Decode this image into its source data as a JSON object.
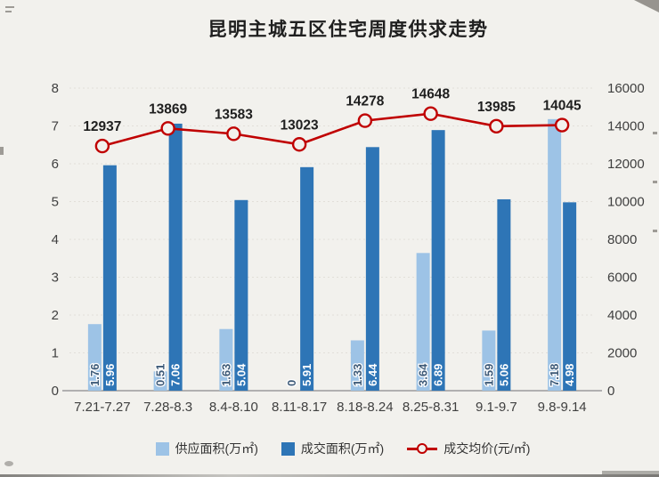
{
  "title": "昆明主城五区住宅周度供求走势",
  "colors": {
    "background": "#f2f1ed",
    "axis_text": "#404040",
    "title_text": "#1f1f1f",
    "grid": "#e2dfd9",
    "axis_line": "#9b9b9b"
  },
  "chart_data": {
    "type": "bar",
    "title": "昆明主城五区住宅周度供求走势",
    "categories": [
      "7.21-7.27",
      "7.28-8.3",
      "8.4-8.10",
      "8.11-8.17",
      "8.18-8.24",
      "8.25-8.31",
      "9.1-9.7",
      "9.8-9.14"
    ],
    "series": [
      {
        "name": "供应面积(万㎡)",
        "type": "bar",
        "axis": "left",
        "color": "#9dc3e6",
        "label_color": "#3d5a78",
        "label_halo": "#ffffff",
        "values": [
          1.76,
          0.51,
          1.63,
          0,
          1.33,
          3.64,
          1.59,
          7.18
        ]
      },
      {
        "name": "成交面积(万㎡)",
        "type": "bar",
        "axis": "left",
        "color": "#2e75b6",
        "label_color": "#ffffff",
        "label_halo": "",
        "values": [
          5.96,
          7.06,
          5.04,
          5.91,
          6.44,
          6.89,
          5.06,
          4.98
        ]
      },
      {
        "name": "成交均价(元/㎡)",
        "type": "line",
        "axis": "right",
        "color": "#c00000",
        "marker": "circle",
        "values": [
          12937,
          13869,
          13583,
          13023,
          14278,
          14648,
          13985,
          14045
        ]
      }
    ],
    "left_axis": {
      "min": 0,
      "max": 8,
      "step": 1
    },
    "right_axis": {
      "min": 0,
      "max": 16000,
      "step": 2000
    },
    "legend_position": "bottom",
    "grid": true
  }
}
